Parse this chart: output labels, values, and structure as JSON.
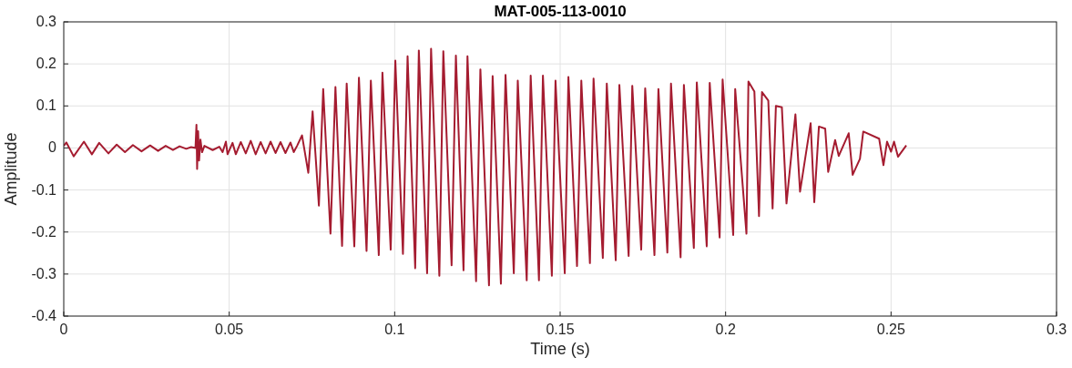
{
  "chart_data": {
    "type": "line",
    "title": "MAT-005-113-0010",
    "xlabel": "Time (s)",
    "ylabel": "Amplitude",
    "xlim": [
      0,
      0.3
    ],
    "xticks": [
      0,
      0.05,
      0.1,
      0.15,
      0.2,
      0.25,
      0.3
    ],
    "ylim": [
      -0.4,
      0.3
    ],
    "yticks": [
      -0.4,
      -0.3,
      -0.2,
      -0.1,
      0,
      0.1,
      0.2,
      0.3
    ],
    "grid": true,
    "series": [
      {
        "color": "#a51c30",
        "x": [
          0,
          0.0008,
          0.003,
          0.0061,
          0.0085,
          0.0107,
          0.0135,
          0.016,
          0.0185,
          0.0209,
          0.0235,
          0.0261,
          0.0285,
          0.0308,
          0.033,
          0.035,
          0.037,
          0.0385,
          0.0398,
          0.0401,
          0.0403,
          0.0406,
          0.0409,
          0.0413,
          0.0418,
          0.0425,
          0.045,
          0.047,
          0.048,
          0.049,
          0.0495,
          0.051,
          0.052,
          0.0535,
          0.055,
          0.0565,
          0.058,
          0.0595,
          0.061,
          0.0625,
          0.064,
          0.0655,
          0.067,
          0.0685,
          0.0695,
          0.0705,
          0.072,
          0.0739,
          0.0752,
          0.0771,
          0.0784,
          0.0806,
          0.0821,
          0.0841,
          0.0855,
          0.0878,
          0.0892,
          0.0915,
          0.0928,
          0.0952,
          0.0963,
          0.0988,
          0.1002,
          0.1025,
          0.1039,
          0.1062,
          0.1073,
          0.1098,
          0.111,
          0.1135,
          0.1147,
          0.1172,
          0.1185,
          0.1208,
          0.122,
          0.1246,
          0.1259,
          0.1285,
          0.1296,
          0.1321,
          0.1335,
          0.136,
          0.1372,
          0.1399,
          0.1411,
          0.1436,
          0.1448,
          0.1475,
          0.1486,
          0.1514,
          0.1525,
          0.1551,
          0.1564,
          0.159,
          0.1601,
          0.1629,
          0.1641,
          0.1668,
          0.1679,
          0.1707,
          0.1718,
          0.1745,
          0.1757,
          0.1785,
          0.1797,
          0.1824,
          0.1835,
          0.1864,
          0.1874,
          0.1904,
          0.1913,
          0.1943,
          0.1952,
          0.1982,
          0.1991,
          0.2023,
          0.2029,
          0.2063,
          0.2069,
          0.2087,
          0.2101,
          0.211,
          0.2129,
          0.2142,
          0.2152,
          0.217,
          0.2184,
          0.2211,
          0.2225,
          0.2257,
          0.2268,
          0.2282,
          0.2301,
          0.231,
          0.2331,
          0.2342,
          0.2372,
          0.2384,
          0.2406,
          0.2416,
          0.2464,
          0.2477,
          0.2488,
          0.25,
          0.2509,
          0.2521,
          0.2546
        ],
        "values": [
          0.005,
          0.013,
          -0.02,
          0.015,
          -0.015,
          0.012,
          -0.013,
          0.008,
          -0.01,
          0.007,
          -0.008,
          0.006,
          -0.007,
          0.005,
          -0.005,
          0.004,
          -0.002,
          0.002,
          0,
          0.055,
          -0.05,
          0.04,
          -0.03,
          0.02,
          -0.01,
          0.005,
          -0.005,
          0.003,
          -0.01,
          0.015,
          -0.015,
          0.012,
          -0.015,
          0.014,
          -0.013,
          0.017,
          -0.015,
          0.014,
          -0.013,
          0.015,
          -0.012,
          0.014,
          -0.012,
          0.013,
          -0.01,
          0.005,
          0.03,
          -0.059,
          0.087,
          -0.137,
          0.14,
          -0.204,
          0.145,
          -0.233,
          0.153,
          -0.234,
          0.167,
          -0.245,
          0.16,
          -0.255,
          0.179,
          -0.242,
          0.208,
          -0.252,
          0.218,
          -0.286,
          0.232,
          -0.298,
          0.236,
          -0.304,
          0.23,
          -0.279,
          0.22,
          -0.291,
          0.218,
          -0.317,
          0.187,
          -0.327,
          0.171,
          -0.323,
          0.174,
          -0.298,
          0.16,
          -0.315,
          0.172,
          -0.315,
          0.172,
          -0.304,
          0.16,
          -0.298,
          0.169,
          -0.281,
          0.16,
          -0.274,
          0.165,
          -0.262,
          0.153,
          -0.267,
          0.15,
          -0.257,
          0.148,
          -0.242,
          0.142,
          -0.255,
          0.14,
          -0.249,
          0.153,
          -0.26,
          0.15,
          -0.238,
          0.156,
          -0.234,
          0.155,
          -0.213,
          0.163,
          -0.207,
          0.14,
          -0.204,
          0.158,
          0.134,
          -0.162,
          0.133,
          0.113,
          -0.144,
          0.1,
          0.097,
          -0.132,
          0.08,
          -0.104,
          0.059,
          -0.129,
          0.051,
          0.046,
          -0.057,
          0.019,
          -0.019,
          0.035,
          -0.064,
          -0.026,
          0.039,
          0.022,
          -0.041,
          0.015,
          -0.009,
          0.015,
          -0.021,
          0.006
        ]
      }
    ]
  }
}
